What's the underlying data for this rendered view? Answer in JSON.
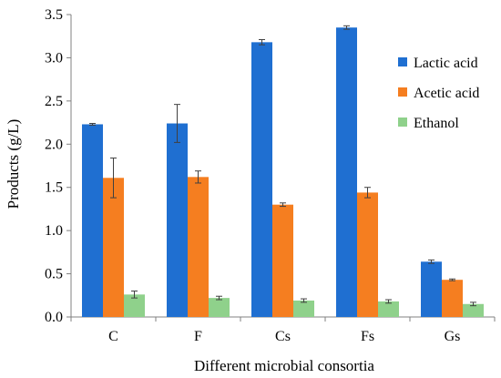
{
  "chart_data": {
    "type": "bar",
    "title": "",
    "xlabel": "Different microbial consortia",
    "ylabel": "Products (g/L)",
    "ylim": [
      0,
      3.5
    ],
    "yticks": [
      "0.0",
      "0.5",
      "1.0",
      "1.5",
      "2.0",
      "2.5",
      "3.0",
      "3.5"
    ],
    "categories": [
      "C",
      "F",
      "Cs",
      "Fs",
      "Gs"
    ],
    "grid": false,
    "legend_position": "top-right",
    "series": [
      {
        "name": "Lactic acid",
        "color": "#1F6FD1",
        "values": [
          2.23,
          2.24,
          3.18,
          3.35,
          0.64
        ],
        "errors": [
          0.01,
          0.22,
          0.03,
          0.02,
          0.02
        ]
      },
      {
        "name": "Acetic acid",
        "color": "#F57E20",
        "values": [
          1.61,
          1.62,
          1.3,
          1.44,
          0.43
        ],
        "errors": [
          0.23,
          0.07,
          0.02,
          0.06,
          0.01
        ]
      },
      {
        "name": "Ethanol",
        "color": "#8FD18B",
        "values": [
          0.26,
          0.22,
          0.19,
          0.18,
          0.15
        ],
        "errors": [
          0.04,
          0.02,
          0.02,
          0.02,
          0.02
        ]
      }
    ]
  }
}
